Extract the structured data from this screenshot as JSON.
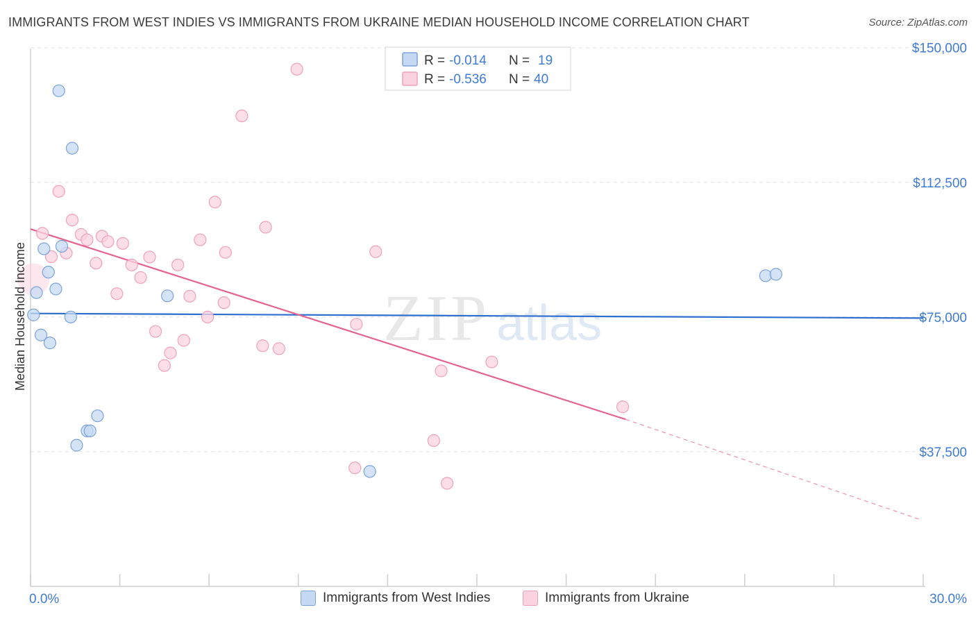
{
  "title": "IMMIGRANTS FROM WEST INDIES VS IMMIGRANTS FROM UKRAINE MEDIAN HOUSEHOLD INCOME CORRELATION CHART",
  "source": "Source: ZipAtlas.com",
  "watermark": {
    "zip": "ZIP",
    "atlas": "atlas"
  },
  "colors": {
    "blue_fill": "#c5d9f3",
    "blue_stroke": "#7ba2dc",
    "blue_line": "#2f6fce",
    "pink_fill": "#fbd3e0",
    "pink_stroke": "#efa1bb",
    "pink_line": "#e5628f",
    "axis_label": "#3f7ad4",
    "grid": "#e0e0e0"
  },
  "legend_top": {
    "rows": [
      {
        "r_label": "R =",
        "r_value": "-0.014",
        "n_label": "N =",
        "n_value": "19"
      },
      {
        "r_label": "R =",
        "r_value": "-0.536",
        "n_label": "N =",
        "n_value": "40"
      }
    ]
  },
  "legend_bottom": {
    "series_a": "Immigrants from West Indies",
    "series_b": "Immigrants from Ukraine"
  },
  "chart_data": {
    "type": "scatter",
    "title": "IMMIGRANTS FROM WEST INDIES VS IMMIGRANTS FROM UKRAINE MEDIAN HOUSEHOLD INCOME CORRELATION CHART",
    "xlabel": "",
    "ylabel": "Median Household Income",
    "xlim": [
      0,
      30
    ],
    "ylim": [
      0,
      154000
    ],
    "x_tick_labels": [
      "0.0%",
      "30.0%"
    ],
    "y_ticks": [
      37500,
      75000,
      112500,
      150000
    ],
    "y_tick_labels": [
      "$37,500",
      "$75,000",
      "$112,500",
      "$150,000"
    ],
    "grid": true,
    "series": [
      {
        "name": "Immigrants from West Indies",
        "R": -0.014,
        "N": 19,
        "trend": {
          "x0": 0,
          "y0": 76000,
          "x1": 30,
          "y1": 74700
        },
        "points": [
          {
            "x": 0.95,
            "y": 138000
          },
          {
            "x": 1.4,
            "y": 122000
          },
          {
            "x": 0.45,
            "y": 94000
          },
          {
            "x": 1.05,
            "y": 94700
          },
          {
            "x": 0.6,
            "y": 87500
          },
          {
            "x": 0.85,
            "y": 82800
          },
          {
            "x": 0.2,
            "y": 81800
          },
          {
            "x": 4.6,
            "y": 80900
          },
          {
            "x": 0.1,
            "y": 75600
          },
          {
            "x": 1.35,
            "y": 75000
          },
          {
            "x": 0.35,
            "y": 70000
          },
          {
            "x": 0.65,
            "y": 67800
          },
          {
            "x": 2.25,
            "y": 47500
          },
          {
            "x": 1.9,
            "y": 43300
          },
          {
            "x": 2.0,
            "y": 43300
          },
          {
            "x": 1.55,
            "y": 39300
          },
          {
            "x": 11.4,
            "y": 32000
          },
          {
            "x": 24.7,
            "y": 86500
          },
          {
            "x": 25.05,
            "y": 86900
          }
        ]
      },
      {
        "name": "Immigrants from Ukraine",
        "R": -0.536,
        "N": 40,
        "trend": {
          "x0": 0,
          "y0": 99500,
          "x1": 20.0,
          "y1": 46500,
          "dashed_to_x": 29.9,
          "dashed_to_y": 18600
        },
        "points": [
          {
            "x": 0.1,
            "y": 85500
          },
          {
            "x": 0.4,
            "y": 98300
          },
          {
            "x": 0.7,
            "y": 91800
          },
          {
            "x": 0.95,
            "y": 110000
          },
          {
            "x": 1.2,
            "y": 92800
          },
          {
            "x": 1.4,
            "y": 102000
          },
          {
            "x": 1.7,
            "y": 98000
          },
          {
            "x": 1.9,
            "y": 96500
          },
          {
            "x": 2.2,
            "y": 90000
          },
          {
            "x": 2.4,
            "y": 97500
          },
          {
            "x": 2.6,
            "y": 96000
          },
          {
            "x": 2.9,
            "y": 81500
          },
          {
            "x": 3.1,
            "y": 95500
          },
          {
            "x": 3.4,
            "y": 89500
          },
          {
            "x": 3.7,
            "y": 86000
          },
          {
            "x": 4.0,
            "y": 91700
          },
          {
            "x": 4.2,
            "y": 71000
          },
          {
            "x": 4.5,
            "y": 61500
          },
          {
            "x": 4.7,
            "y": 65000
          },
          {
            "x": 4.95,
            "y": 89500
          },
          {
            "x": 5.15,
            "y": 68500
          },
          {
            "x": 5.35,
            "y": 80800
          },
          {
            "x": 5.7,
            "y": 96500
          },
          {
            "x": 5.95,
            "y": 75000
          },
          {
            "x": 6.2,
            "y": 107000
          },
          {
            "x": 6.5,
            "y": 79000
          },
          {
            "x": 6.55,
            "y": 93000
          },
          {
            "x": 7.1,
            "y": 131000
          },
          {
            "x": 7.8,
            "y": 67000
          },
          {
            "x": 7.9,
            "y": 100000
          },
          {
            "x": 8.35,
            "y": 66200
          },
          {
            "x": 8.95,
            "y": 144000
          },
          {
            "x": 10.9,
            "y": 33000
          },
          {
            "x": 10.95,
            "y": 73000
          },
          {
            "x": 11.6,
            "y": 93200
          },
          {
            "x": 13.55,
            "y": 40600
          },
          {
            "x": 13.8,
            "y": 60000
          },
          {
            "x": 14.0,
            "y": 28700
          },
          {
            "x": 15.5,
            "y": 62500
          },
          {
            "x": 19.9,
            "y": 50000
          }
        ]
      }
    ]
  }
}
